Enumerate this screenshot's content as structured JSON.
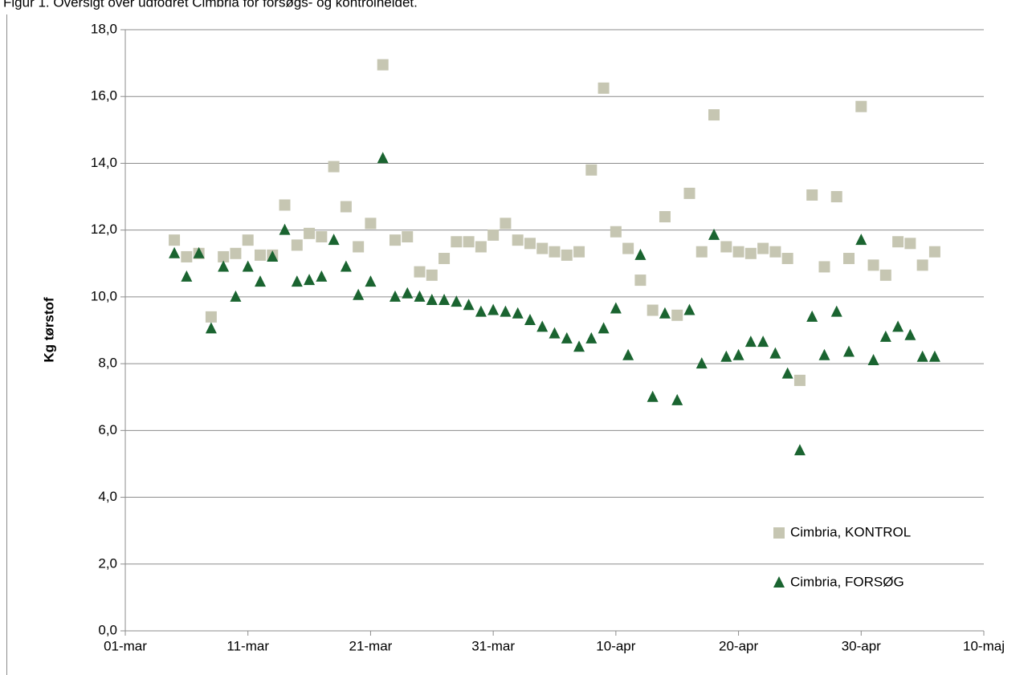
{
  "chart_data": {
    "type": "scatter",
    "caption": "Figur 1. Oversigt over udfodret Cimbria for forsøgs- og kontrolheldet.",
    "y_label": "Kg tørstof",
    "x": [
      "05-mar",
      "06-mar",
      "07-mar",
      "08-mar",
      "09-mar",
      "10-mar",
      "11-mar",
      "12-mar",
      "13-mar",
      "14-mar",
      "15-mar",
      "16-mar",
      "17-mar",
      "18-mar",
      "19-mar",
      "20-mar",
      "21-mar",
      "22-mar",
      "23-mar",
      "24-mar",
      "25-mar",
      "26-mar",
      "27-mar",
      "28-mar",
      "29-mar",
      "30-mar",
      "31-mar",
      "01-apr",
      "02-apr",
      "03-apr",
      "04-apr",
      "05-apr",
      "06-apr",
      "07-apr",
      "08-apr",
      "09-apr",
      "10-apr",
      "11-apr",
      "12-apr",
      "13-apr",
      "14-apr",
      "15-apr",
      "16-apr",
      "17-apr",
      "18-apr",
      "19-apr",
      "20-apr",
      "21-apr",
      "22-apr",
      "23-apr",
      "24-apr",
      "25-apr",
      "26-apr",
      "27-apr",
      "28-apr",
      "29-apr",
      "30-apr",
      "01-maj",
      "02-maj",
      "03-maj",
      "04-maj",
      "05-maj",
      "06-maj"
    ],
    "series": [
      {
        "name": "Cimbria, KONTROL",
        "color": "#c6c6b2",
        "marker": "square",
        "values": [
          11.7,
          11.2,
          11.3,
          9.4,
          11.2,
          11.3,
          11.7,
          11.25,
          11.25,
          12.75,
          11.55,
          11.9,
          11.8,
          13.9,
          12.7,
          11.5,
          12.2,
          16.95,
          11.7,
          11.8,
          10.75,
          10.65,
          11.15,
          11.65,
          11.65,
          11.5,
          11.85,
          12.2,
          11.7,
          11.6,
          11.45,
          11.35,
          11.25,
          11.35,
          13.8,
          16.25,
          11.95,
          11.45,
          10.5,
          9.6,
          12.4,
          9.45,
          13.1,
          11.35,
          15.45,
          11.5,
          11.35,
          11.3,
          11.45,
          11.35,
          11.15,
          7.5,
          13.05,
          10.9,
          13.0,
          11.15,
          15.7,
          10.95,
          10.65,
          11.65,
          11.6,
          10.95,
          11.35
        ]
      },
      {
        "name": "Cimbria, FORSØG",
        "color": "#1a6430",
        "marker": "triangle",
        "values": [
          11.3,
          10.6,
          11.3,
          9.05,
          10.9,
          10.0,
          10.9,
          10.45,
          11.2,
          12.0,
          10.45,
          10.5,
          10.6,
          11.7,
          10.9,
          10.05,
          10.45,
          14.15,
          10.0,
          10.1,
          10.0,
          9.9,
          9.9,
          9.85,
          9.75,
          9.55,
          9.6,
          9.55,
          9.5,
          9.3,
          9.1,
          8.9,
          8.75,
          8.5,
          8.75,
          9.05,
          9.65,
          8.25,
          11.25,
          7.0,
          9.5,
          6.9,
          9.6,
          8.0,
          11.85,
          8.2,
          8.25,
          8.65,
          8.65,
          8.3,
          7.7,
          5.4,
          9.4,
          8.25,
          9.55,
          8.35,
          11.7,
          8.1,
          8.8,
          9.1,
          8.85,
          8.2,
          8.2
        ]
      }
    ],
    "xlim": [
      "01-mar",
      "10-maj"
    ],
    "xticks": [
      "01-mar",
      "11-mar",
      "21-mar",
      "31-mar",
      "10-apr",
      "20-apr",
      "30-apr",
      "10-maj"
    ],
    "ylim": [
      0,
      18
    ],
    "yticks": [
      {
        "value": 0,
        "label": "0,0"
      },
      {
        "value": 2,
        "label": "2,0"
      },
      {
        "value": 4,
        "label": "4,0"
      },
      {
        "value": 6,
        "label": "6,0"
      },
      {
        "value": 8,
        "label": "8,0"
      },
      {
        "value": 10,
        "label": "10,0"
      },
      {
        "value": 12,
        "label": "12,0"
      },
      {
        "value": 14,
        "label": "14,0"
      },
      {
        "value": 16,
        "label": "16,0"
      },
      {
        "value": 18,
        "label": "18,0"
      }
    ],
    "grid": true,
    "legend": "lower right"
  }
}
